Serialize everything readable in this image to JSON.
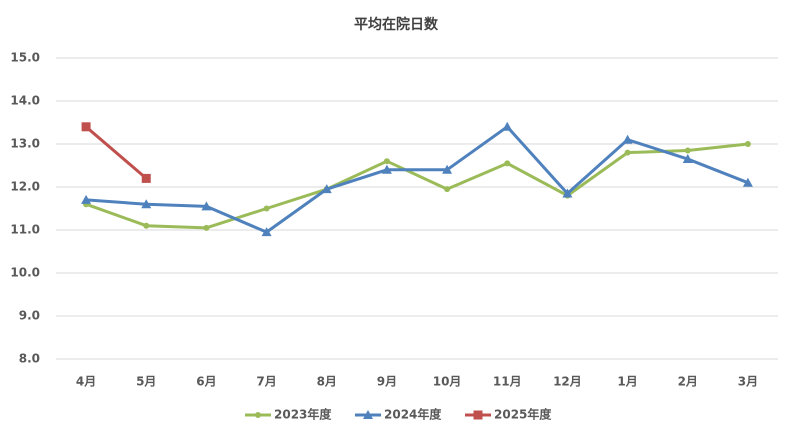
{
  "chart_data": {
    "type": "line",
    "title": "平均在院日数",
    "categories": [
      "4月",
      "5月",
      "6月",
      "7月",
      "8月",
      "9月",
      "10月",
      "11月",
      "12月",
      "1月",
      "2月",
      "3月"
    ],
    "series": [
      {
        "name": "2023年度",
        "color": "#9bbb59",
        "marker": "circle",
        "values": [
          11.6,
          11.1,
          11.05,
          11.5,
          11.95,
          12.6,
          11.95,
          12.55,
          11.8,
          12.8,
          12.85,
          13.0
        ]
      },
      {
        "name": "2024年度",
        "color": "#4f81bd",
        "marker": "triangle",
        "values": [
          11.7,
          11.6,
          11.55,
          10.95,
          11.95,
          12.4,
          12.4,
          13.4,
          11.85,
          13.1,
          12.65,
          12.1
        ]
      },
      {
        "name": "2025年度",
        "color": "#c0504d",
        "marker": "square",
        "values": [
          13.4,
          12.2,
          null,
          null,
          null,
          null,
          null,
          null,
          null,
          null,
          null,
          null
        ]
      }
    ],
    "ylim": [
      8,
      15
    ],
    "yticks": [
      {
        "value": 8,
        "label": "8.0"
      },
      {
        "value": 9,
        "label": "9.0"
      },
      {
        "value": 10,
        "label": "10.0"
      },
      {
        "value": 11,
        "label": "11.0"
      },
      {
        "value": 12,
        "label": "12.0"
      },
      {
        "value": 13,
        "label": "13.0"
      },
      {
        "value": 14,
        "label": "14.0"
      },
      {
        "value": 15,
        "label": "15.0"
      }
    ],
    "grid": true,
    "legend": "bottom"
  }
}
